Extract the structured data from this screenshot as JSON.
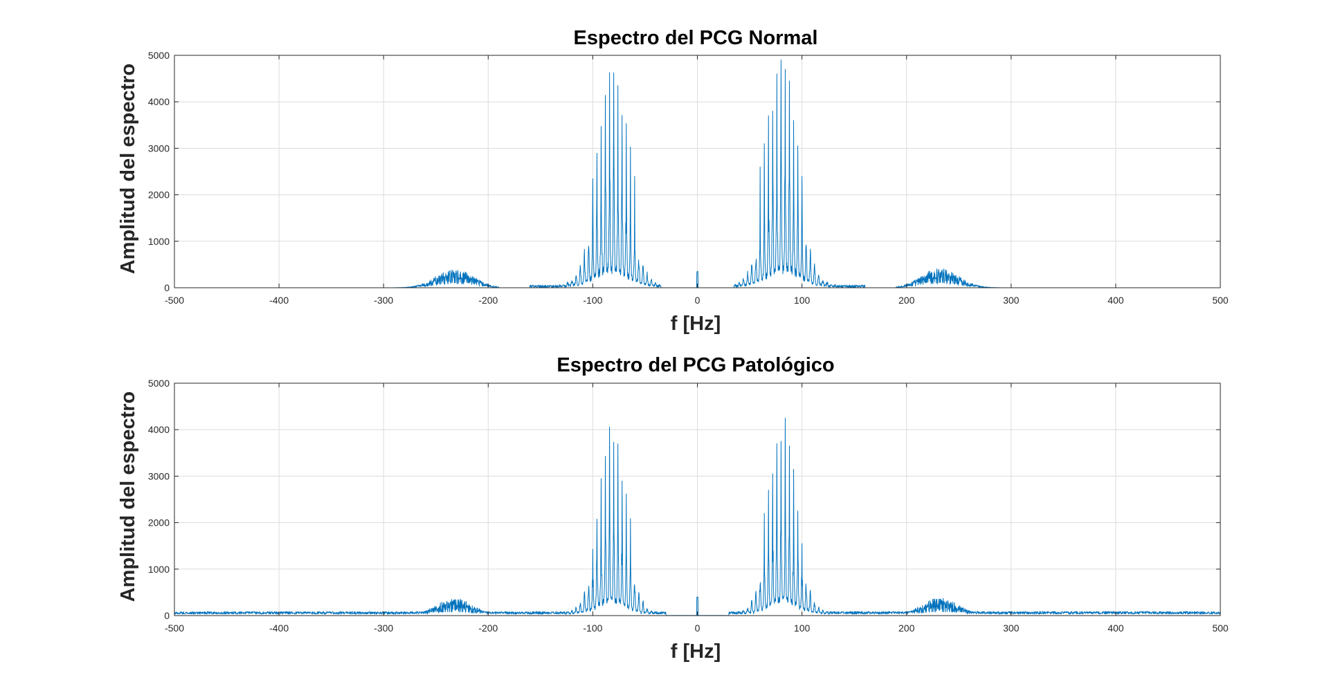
{
  "colors": {
    "background": "#ffffff",
    "axes_background": "#ffffff",
    "axis_line": "#262626",
    "grid": "#dcdcdc",
    "series": "#0072bd"
  },
  "chart_data": [
    {
      "type": "line",
      "title": "Espectro del PCG Normal",
      "xlabel": "f [Hz]",
      "ylabel": "Amplitud del espectro",
      "xlim": [
        -500,
        500
      ],
      "ylim": [
        0,
        5000
      ],
      "xticks": [
        -500,
        -400,
        -300,
        -200,
        -100,
        0,
        100,
        200,
        300,
        400,
        500
      ],
      "yticks": [
        0,
        1000,
        2000,
        3000,
        4000,
        5000
      ],
      "grid": true,
      "legend": "none",
      "spectrum_profile": {
        "symmetric_about_zero": true,
        "dc_spike": 350,
        "main_peaks": [
          {
            "f": 72,
            "amplitude": 3800
          },
          {
            "f": 76,
            "amplitude": 4600
          },
          {
            "f": 80,
            "amplitude": 4900
          },
          {
            "f": 84,
            "amplitude": 4700
          },
          {
            "f": 88,
            "amplitude": 4450
          },
          {
            "f": 92,
            "amplitude": 3600
          },
          {
            "f": 68,
            "amplitude": 3700
          },
          {
            "f": 64,
            "amplitude": 3100
          },
          {
            "f": 96,
            "amplitude": 3050
          },
          {
            "f": 100,
            "amplitude": 2400
          },
          {
            "f": 60,
            "amplitude": 2600
          }
        ],
        "main_lobe": {
          "center": 82,
          "width": 14,
          "peak": 3300,
          "floor": 60
        },
        "main_lobe_extent": [
          35,
          160
        ],
        "secondary_lobe": {
          "center": 232,
          "width": 14,
          "peak": 420,
          "extent": [
            190,
            290
          ]
        },
        "noise_floor": 0
      }
    },
    {
      "type": "line",
      "title": "Espectro del PCG Patológico",
      "xlabel": "f [Hz]",
      "ylabel": "Amplitud del espectro",
      "xlim": [
        -500,
        500
      ],
      "ylim": [
        0,
        5000
      ],
      "xticks": [
        -500,
        -400,
        -300,
        -200,
        -100,
        0,
        100,
        200,
        300,
        400,
        500
      ],
      "yticks": [
        0,
        1000,
        2000,
        3000,
        4000,
        5000
      ],
      "grid": true,
      "legend": "none",
      "spectrum_profile": {
        "symmetric_about_zero": true,
        "dc_spike": 400,
        "main_peaks": [
          {
            "f": 76,
            "amplitude": 3700
          },
          {
            "f": 80,
            "amplitude": 3750
          },
          {
            "f": 84,
            "amplitude": 4250
          },
          {
            "f": 88,
            "amplitude": 3650
          },
          {
            "f": 72,
            "amplitude": 3050
          },
          {
            "f": 92,
            "amplitude": 3150
          },
          {
            "f": 68,
            "amplitude": 2700
          },
          {
            "f": 96,
            "amplitude": 2250
          },
          {
            "f": 64,
            "amplitude": 2200
          },
          {
            "f": 100,
            "amplitude": 1550
          }
        ],
        "main_lobe": {
          "center": 82,
          "width": 13,
          "peak": 2600,
          "floor": 50
        },
        "main_lobe_extent": [
          40,
          145
        ],
        "secondary_lobe": {
          "center": 232,
          "width": 14,
          "peak": 380,
          "extent": [
            190,
            290
          ]
        },
        "noise_floor": 90
      }
    }
  ]
}
